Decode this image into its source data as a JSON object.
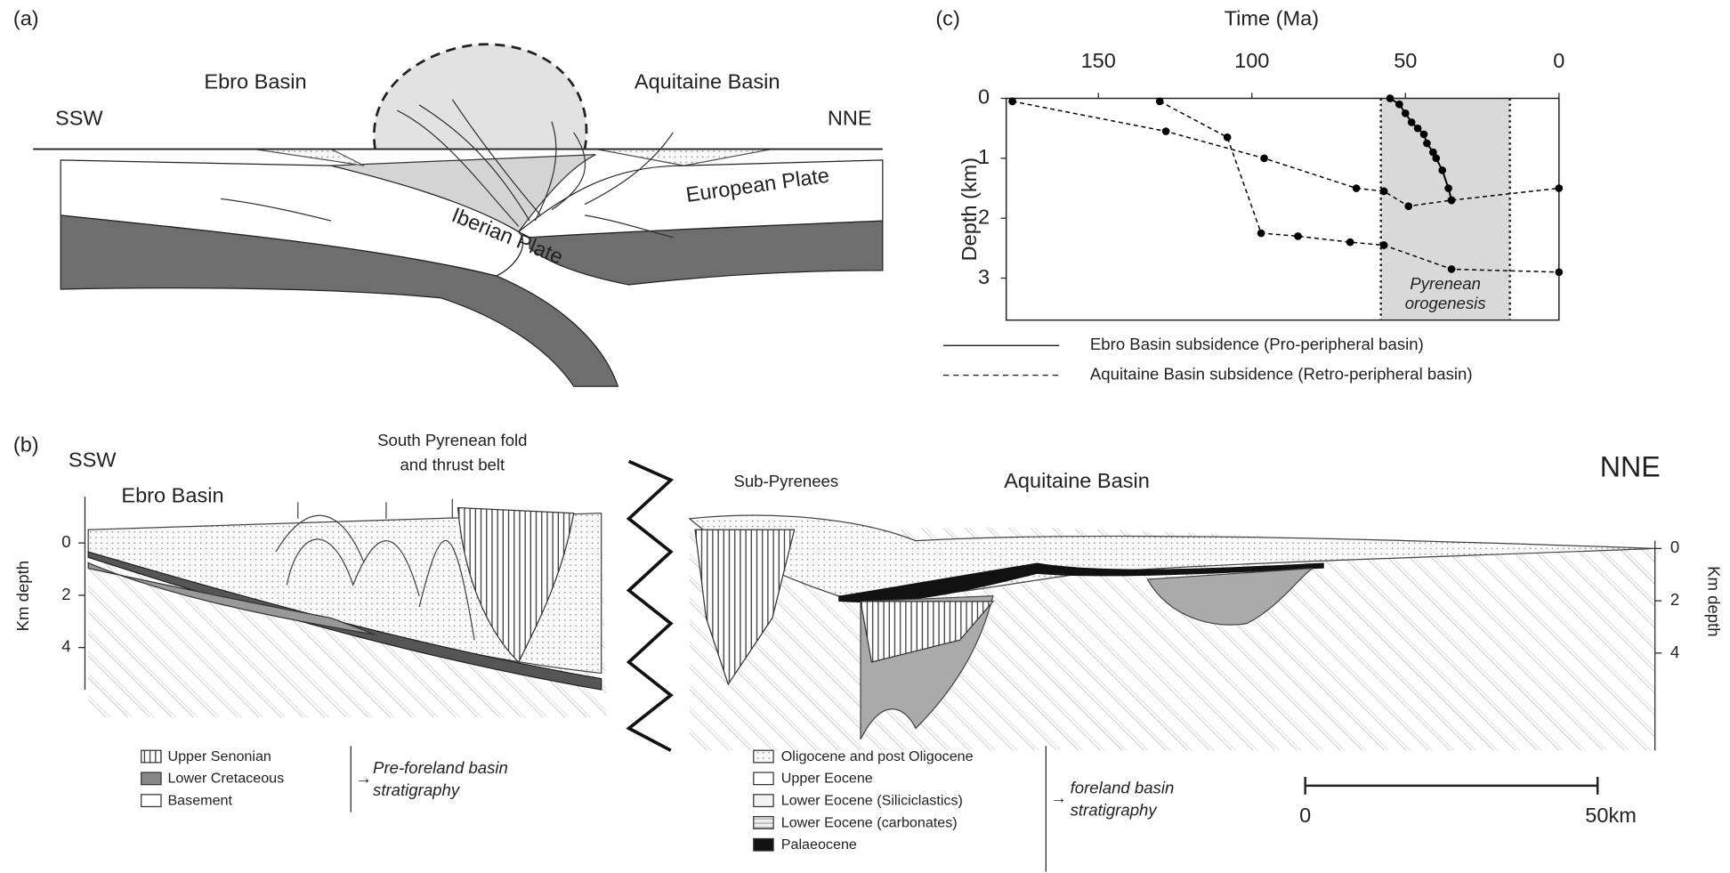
{
  "panel_a": {
    "label": "(a)",
    "left_basin": "Ebro Basin",
    "right_basin": "Aquitaine Basin",
    "left_direction": "SSW",
    "right_direction": "NNE",
    "lower_plate": "Iberian Plate",
    "upper_plate": "European Plate"
  },
  "panel_b": {
    "label": "(b)",
    "left_direction": "SSW",
    "right_direction": "NNE",
    "thrust_belt": [
      "South Pyrenean fold",
      "and thrust belt"
    ],
    "left_basin": "Ebro Basin",
    "sub_pyrenees": "Sub-Pyrenees",
    "right_basin": "Aquitaine Basin",
    "depth_axis_label": "Km depth",
    "left_depth_ticks": [
      0,
      2,
      4
    ],
    "right_depth_ticks": [
      0,
      2,
      4
    ],
    "pre_foreland_legend": {
      "items": [
        "Upper Senonian",
        "Lower Cretaceous",
        "Basement"
      ],
      "group": [
        "Pre-foreland basin",
        "stratigraphy"
      ]
    },
    "foreland_legend": {
      "items": [
        "Oligocene and post Oligocene",
        "Upper Eocene",
        "Lower Eocene (Siliciclastics)",
        "Lower Eocene (carbonates)",
        "Palaeocene"
      ],
      "group": [
        "foreland basin",
        "stratigraphy"
      ]
    },
    "scale_bar": [
      "0",
      "50km"
    ]
  },
  "panel_c_label": "(c)",
  "chart_data": {
    "type": "line",
    "xlabel": "Time (Ma)",
    "ylabel": "Depth (km)",
    "xlim": [
      180,
      0
    ],
    "ylim": [
      0,
      3.7
    ],
    "y_inverted": true,
    "xticks": [
      150,
      100,
      50,
      0
    ],
    "yticks": [
      0,
      1,
      2,
      3
    ],
    "shade": {
      "range": [
        58,
        16
      ],
      "label": [
        "Pyrenean",
        "orogenesis"
      ],
      "color": "#d9d9d9"
    },
    "series": [
      {
        "name": "Ebro Basin subsidence (Pro-peripheral basin)",
        "color": "#000000",
        "dashed": false,
        "x": [
          55,
          52,
          50,
          48,
          46,
          44,
          43,
          41,
          40,
          38,
          36,
          35
        ],
        "values": [
          0,
          0.1,
          0.25,
          0.4,
          0.5,
          0.6,
          0.75,
          0.9,
          1.0,
          1.2,
          1.5,
          1.7
        ]
      },
      {
        "name": "Aquitaine Basin subsidence (Retro-peripheral basin)",
        "color": "#000000",
        "dashed": true,
        "x": [
          178,
          128,
          96,
          66,
          57,
          49,
          35,
          0,
          null,
          130,
          108,
          97,
          85,
          68,
          57,
          35,
          0
        ],
        "values": [
          0.05,
          0.55,
          1.0,
          1.5,
          1.55,
          1.8,
          1.7,
          1.5,
          null,
          0.05,
          0.65,
          2.25,
          2.3,
          2.4,
          2.45,
          2.85,
          2.9
        ]
      }
    ]
  }
}
